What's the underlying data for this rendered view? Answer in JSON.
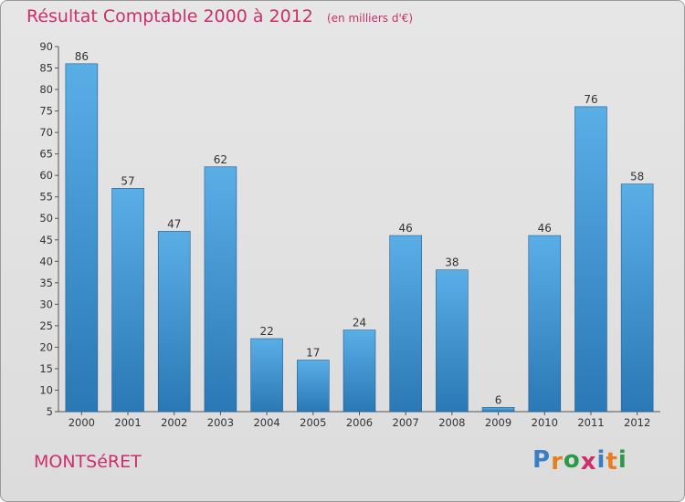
{
  "header": {
    "title": "Résultat Comptable 2000 à 2012",
    "subtitle": "(en milliers d'€)"
  },
  "footer": {
    "commune": "MONTSéRET",
    "logo_text": "Proxiti"
  },
  "colors": {
    "accent": "#cc2f6a",
    "bar_top": "#5aaee6",
    "bar_bottom": "#2a78b5",
    "logo_letters": [
      "#3a7fc4",
      "#e67e22",
      "#2a9a48",
      "#cc2f6a",
      "#3a7fc4",
      "#e67e22",
      "#2a9a48"
    ]
  },
  "chart_data": {
    "type": "bar",
    "title": "Résultat Comptable 2000 à 2012",
    "subtitle": "(en milliers d'€)",
    "categories": [
      "2000",
      "2001",
      "2002",
      "2003",
      "2004",
      "2005",
      "2006",
      "2007",
      "2008",
      "2009",
      "2010",
      "2011",
      "2012"
    ],
    "values": [
      86,
      57,
      47,
      62,
      22,
      17,
      24,
      46,
      38,
      6,
      46,
      76,
      58
    ],
    "ylim": [
      5,
      90
    ],
    "yticks": [
      5,
      10,
      15,
      20,
      25,
      30,
      35,
      40,
      45,
      50,
      55,
      60,
      65,
      70,
      75,
      80,
      85,
      90
    ],
    "grid": false,
    "xlabel": "",
    "ylabel": ""
  }
}
